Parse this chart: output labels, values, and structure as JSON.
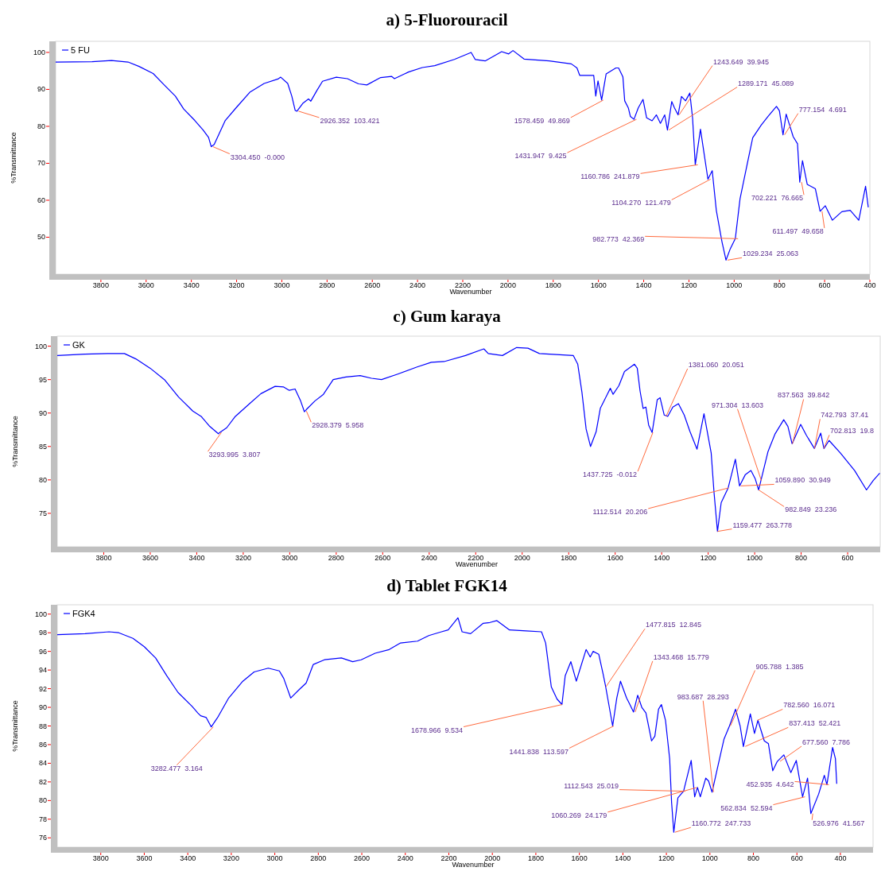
{
  "chart_data": [
    {
      "type": "line",
      "title": "a) 5-Fluorouracil",
      "xlabel": "Wavenumber",
      "ylabel": "%Transmittance",
      "legend": "top left",
      "xlim": [
        4000,
        400
      ],
      "xticks": [
        3800,
        3600,
        3400,
        3200,
        3000,
        2800,
        2600,
        2400,
        2200,
        2000,
        1800,
        1600,
        1400,
        1200,
        1000,
        800,
        600,
        400
      ],
      "ylim": [
        40,
        103
      ],
      "yticks": [
        50,
        60,
        70,
        80,
        90,
        100
      ],
      "series": [
        {
          "name": "5 FU",
          "color": "#0000ff",
          "x": [
            4000,
            3839,
            3753,
            3680,
            3631,
            3569,
            3520,
            3471,
            3434,
            3385,
            3348,
            3324,
            3312,
            3299,
            3250,
            3201,
            3140,
            3078,
            3017,
            3005,
            2974,
            2956,
            2941,
            2933,
            2906,
            2882,
            2872,
            2845,
            2820,
            2759,
            2710,
            2661,
            2624,
            2563,
            2514,
            2502,
            2440,
            2379,
            2324,
            2237,
            2163,
            2145,
            2101,
            2028,
            1997,
            1978,
            1929,
            1818,
            1720,
            1695,
            1683,
            1646,
            1621,
            1612,
            1602,
            1586,
            1566,
            1523,
            1511,
            1492,
            1484,
            1468,
            1459,
            1443,
            1424,
            1403,
            1387,
            1363,
            1344,
            1326,
            1307,
            1295,
            1276,
            1264,
            1248,
            1233,
            1215,
            1196,
            1184,
            1172,
            1149,
            1116,
            1097,
            1079,
            1054,
            1036,
            1017,
            995,
            974,
            943,
            918,
            881,
            850,
            813,
            800,
            784,
            770,
            739,
            720,
            710,
            698,
            677,
            641,
            620,
            597,
            566,
            524,
            487,
            449,
            419,
            407
          ],
          "values": [
            97.4,
            97.5,
            97.8,
            97.4,
            96.2,
            94.3,
            91.2,
            88.2,
            84.7,
            81.6,
            79.0,
            77.0,
            74.5,
            75.1,
            81.6,
            85.1,
            89.3,
            91.6,
            92.8,
            93.3,
            91.6,
            88.2,
            84.3,
            84.1,
            86.3,
            87.4,
            86.8,
            89.7,
            92.2,
            93.3,
            92.9,
            91.5,
            91.2,
            93.2,
            93.5,
            92.9,
            94.7,
            95.9,
            96.4,
            98.1,
            100.0,
            98.1,
            97.7,
            100.2,
            99.6,
            100.5,
            98.2,
            97.7,
            96.9,
            95.8,
            93.8,
            93.8,
            93.8,
            88.2,
            92.3,
            87.1,
            94.2,
            95.8,
            95.8,
            93.4,
            86.9,
            85.0,
            82.7,
            81.9,
            85.0,
            87.3,
            82.3,
            81.5,
            83.1,
            80.8,
            83.1,
            79.0,
            86.7,
            85.0,
            83.1,
            88.1,
            86.9,
            89.0,
            82.3,
            69.6,
            79.2,
            65.7,
            68.0,
            57.3,
            48.8,
            43.8,
            46.9,
            49.6,
            60.4,
            69.6,
            76.9,
            80.3,
            82.7,
            85.4,
            84.2,
            77.7,
            83.3,
            77.2,
            75.3,
            64.9,
            70.7,
            64.3,
            63.1,
            57.0,
            58.5,
            54.6,
            56.9,
            57.3,
            54.6,
            63.8,
            58.1
          ]
        }
      ],
      "annotations": [
        {
          "text": "3304.450  -0.000",
          "x": 3304.45,
          "y": 74.5
        },
        {
          "text": "2926.352  103.421",
          "x": 2926.352,
          "y": 84.1
        },
        {
          "text": "1578.459  49.869",
          "x": 1578.459,
          "y": 87.1
        },
        {
          "text": "1431.947  9.425",
          "x": 1431.947,
          "y": 81.9
        },
        {
          "text": "1243.649  39.945",
          "x": 1243.649,
          "y": 83.1
        },
        {
          "text": "1289.171  45.089",
          "x": 1289.171,
          "y": 79.0
        },
        {
          "text": "777.154  4.691",
          "x": 777.154,
          "y": 77.7
        },
        {
          "text": "1160.786  241.879",
          "x": 1160.786,
          "y": 69.6
        },
        {
          "text": "1104.270  121.479",
          "x": 1104.27,
          "y": 65.7
        },
        {
          "text": "702.221  76.665",
          "x": 702.221,
          "y": 64.9
        },
        {
          "text": "611.497  49.658",
          "x": 611.497,
          "y": 57.0
        },
        {
          "text": "982.773  42.369",
          "x": 982.773,
          "y": 49.6
        },
        {
          "text": "1029.234  25.063",
          "x": 1029.234,
          "y": 43.8
        }
      ]
    },
    {
      "type": "line",
      "title": "c) Gum karaya",
      "xlabel": "Wavenumber",
      "ylabel": "%Transmittance",
      "legend": "top left",
      "xlim": [
        4000,
        460
      ],
      "xticks": [
        3800,
        3600,
        3400,
        3200,
        3000,
        2800,
        2600,
        2400,
        2200,
        2000,
        1800,
        1600,
        1400,
        1200,
        1000,
        800,
        600
      ],
      "ylim": [
        70,
        101.5
      ],
      "yticks": [
        75,
        80,
        85,
        90,
        95,
        100
      ],
      "series": [
        {
          "name": "GK",
          "color": "#0000ff",
          "x": [
            4000,
            3882,
            3784,
            3711,
            3662,
            3600,
            3539,
            3478,
            3417,
            3381,
            3344,
            3307,
            3301,
            3271,
            3234,
            3173,
            3124,
            3063,
            3026,
            3002,
            2977,
            2953,
            2937,
            2929,
            2892,
            2855,
            2813,
            2758,
            2697,
            2648,
            2605,
            2538,
            2452,
            2391,
            2336,
            2244,
            2165,
            2146,
            2085,
            2024,
            1975,
            1926,
            1780,
            1761,
            1743,
            1725,
            1706,
            1682,
            1664,
            1621,
            1609,
            1584,
            1560,
            1517,
            1505,
            1493,
            1480,
            1468,
            1456,
            1441,
            1419,
            1407,
            1389,
            1374,
            1352,
            1328,
            1303,
            1279,
            1248,
            1218,
            1187,
            1175,
            1160,
            1144,
            1114,
            1083,
            1065,
            1040,
            1016,
            998,
            983,
            973,
            943,
            912,
            875,
            857,
            839,
            802,
            778,
            743,
            716,
            702,
            680,
            631,
            570,
            519,
            490,
            462
          ],
          "values": [
            98.6,
            98.8,
            98.9,
            98.9,
            98.1,
            96.7,
            95.0,
            92.4,
            90.3,
            89.5,
            88.0,
            86.9,
            87.1,
            87.8,
            89.5,
            91.4,
            92.9,
            94.0,
            93.9,
            93.4,
            93.6,
            91.8,
            90.2,
            90.5,
            91.8,
            92.8,
            95.0,
            95.4,
            95.6,
            95.2,
            95.0,
            95.8,
            96.9,
            97.6,
            97.7,
            98.6,
            99.6,
            98.9,
            98.6,
            99.8,
            99.7,
            98.9,
            98.6,
            97.3,
            93.1,
            87.6,
            85.0,
            87.2,
            90.7,
            93.7,
            92.8,
            94.1,
            96.2,
            97.3,
            96.7,
            93.3,
            90.7,
            90.9,
            88.2,
            87.1,
            92.0,
            92.3,
            89.7,
            89.5,
            90.9,
            91.4,
            89.7,
            87.3,
            84.6,
            89.9,
            84.0,
            78.2,
            72.3,
            76.6,
            78.8,
            83.1,
            79.1,
            80.8,
            81.4,
            80.2,
            78.5,
            79.9,
            84.2,
            86.9,
            89.0,
            88.0,
            85.4,
            88.3,
            86.7,
            84.7,
            87.0,
            84.7,
            85.9,
            84.0,
            81.4,
            78.5,
            79.9,
            81.0
          ]
        }
      ],
      "annotations": [
        {
          "text": "3293.995  3.807",
          "x": 3293.995,
          "y": 87.1
        },
        {
          "text": "2928.379  5.958",
          "x": 2928.379,
          "y": 90.3
        },
        {
          "text": "1437.725  -0.012",
          "x": 1437.725,
          "y": 87.1
        },
        {
          "text": "1381.060  20.051",
          "x": 1381.06,
          "y": 89.5
        },
        {
          "text": "971.304  13.603",
          "x": 971.304,
          "y": 79.9
        },
        {
          "text": "837.563  39.842",
          "x": 837.563,
          "y": 85.4
        },
        {
          "text": "742.793  37.41",
          "x": 742.793,
          "y": 84.7
        },
        {
          "text": "702.813  19.8",
          "x": 702.813,
          "y": 84.7
        },
        {
          "text": "1112.514  20.206",
          "x": 1112.514,
          "y": 78.8
        },
        {
          "text": "1059.890  30.949",
          "x": 1059.89,
          "y": 79.1
        },
        {
          "text": "982.849  23.236",
          "x": 982.849,
          "y": 78.5
        },
        {
          "text": "1159.477  263.778",
          "x": 1159.477,
          "y": 72.3
        }
      ]
    },
    {
      "type": "line",
      "title": "d) Tablet FGK14",
      "xlabel": "Wavenumber",
      "ylabel": "%Transmittance",
      "legend": "top left",
      "xlim": [
        4000,
        250
      ],
      "xticks": [
        3800,
        3600,
        3400,
        3200,
        3000,
        2800,
        2600,
        2400,
        2200,
        2000,
        1800,
        1600,
        1400,
        1200,
        1000,
        800,
        600,
        400
      ],
      "ylim": [
        75,
        101
      ],
      "yticks": [
        76,
        78,
        80,
        82,
        84,
        86,
        88,
        90,
        92,
        94,
        96,
        98,
        100
      ],
      "series": [
        {
          "name": "FGK4",
          "color": "#0000ff",
          "x": [
            4000,
            3872,
            3762,
            3717,
            3652,
            3600,
            3548,
            3497,
            3445,
            3380,
            3354,
            3341,
            3315,
            3292,
            3263,
            3212,
            3147,
            3095,
            3030,
            2979,
            2959,
            2927,
            2888,
            2856,
            2823,
            2772,
            2694,
            2642,
            2603,
            2539,
            2474,
            2422,
            2344,
            2292,
            2234,
            2203,
            2158,
            2139,
            2100,
            2043,
            2011,
            1979,
            1921,
            1844,
            1774,
            1755,
            1729,
            1703,
            1680,
            1665,
            1639,
            1614,
            1601,
            1569,
            1550,
            1537,
            1511,
            1492,
            1479,
            1447,
            1428,
            1411,
            1383,
            1370,
            1351,
            1332,
            1313,
            1294,
            1268,
            1253,
            1236,
            1223,
            1204,
            1185,
            1176,
            1166,
            1147,
            1121,
            1086,
            1070,
            1057,
            1044,
            1019,
            1006,
            990,
            967,
            935,
            910,
            882,
            861,
            846,
            814,
            795,
            779,
            750,
            731,
            711,
            690,
            660,
            628,
            603,
            574,
            551,
            536,
            500,
            474,
            462,
            436,
            423,
            417
          ],
          "values": [
            97.8,
            97.9,
            98.1,
            98.0,
            97.4,
            96.5,
            95.3,
            93.4,
            91.6,
            90.1,
            89.4,
            89.1,
            88.9,
            87.9,
            88.9,
            91.0,
            92.8,
            93.8,
            94.2,
            93.9,
            93.1,
            91.0,
            91.9,
            92.6,
            94.6,
            95.1,
            95.3,
            94.9,
            95.1,
            95.8,
            96.2,
            96.9,
            97.1,
            97.7,
            98.1,
            98.3,
            99.6,
            98.1,
            97.9,
            99.0,
            99.1,
            99.3,
            98.3,
            98.2,
            98.1,
            96.9,
            92.2,
            90.9,
            90.3,
            93.4,
            94.9,
            92.8,
            93.8,
            96.2,
            95.4,
            96.0,
            95.7,
            93.7,
            92.2,
            88.0,
            91.0,
            92.8,
            91.0,
            90.4,
            89.5,
            91.3,
            90.0,
            89.4,
            86.4,
            86.9,
            89.8,
            90.3,
            88.6,
            84.5,
            79.8,
            76.6,
            80.3,
            81.0,
            84.3,
            80.4,
            81.4,
            80.4,
            82.4,
            82.1,
            80.9,
            83.3,
            86.6,
            88.0,
            89.8,
            88.0,
            85.8,
            89.3,
            87.2,
            88.6,
            86.4,
            86.1,
            83.2,
            84.2,
            84.9,
            83.0,
            84.3,
            80.4,
            82.4,
            78.6,
            80.7,
            82.7,
            81.7,
            85.7,
            84.5,
            81.8
          ]
        }
      ],
      "annotations": [
        {
          "text": "3282.477  3.164",
          "x": 3282.477,
          "y": 87.9
        },
        {
          "text": "1678.966  9.534",
          "x": 1678.966,
          "y": 90.3
        },
        {
          "text": "1477.815  12.845",
          "x": 1477.815,
          "y": 92.2
        },
        {
          "text": "1441.838  113.597",
          "x": 1441.838,
          "y": 88.0
        },
        {
          "text": "1343.468  15.779",
          "x": 1343.468,
          "y": 89.5
        },
        {
          "text": "905.788  1.385",
          "x": 905.788,
          "y": 88.0
        },
        {
          "text": "983.687  28.293",
          "x": 983.687,
          "y": 80.9
        },
        {
          "text": "782.560  16.071",
          "x": 782.56,
          "y": 88.6
        },
        {
          "text": "837.413  52.421",
          "x": 837.413,
          "y": 85.8
        },
        {
          "text": "677.560  7.786",
          "x": 677.56,
          "y": 84.2
        },
        {
          "text": "452.935  4.642",
          "x": 452.935,
          "y": 81.7
        },
        {
          "text": "562.834  52.594",
          "x": 562.834,
          "y": 80.4
        },
        {
          "text": "526.976  41.567",
          "x": 526.976,
          "y": 78.6
        },
        {
          "text": "1112.543  25.019",
          "x": 1112.543,
          "y": 81.0
        },
        {
          "text": "1060.269  24.179",
          "x": 1060.269,
          "y": 81.4
        },
        {
          "text": "1160.772  247.733",
          "x": 1160.772,
          "y": 76.6
        }
      ]
    }
  ]
}
